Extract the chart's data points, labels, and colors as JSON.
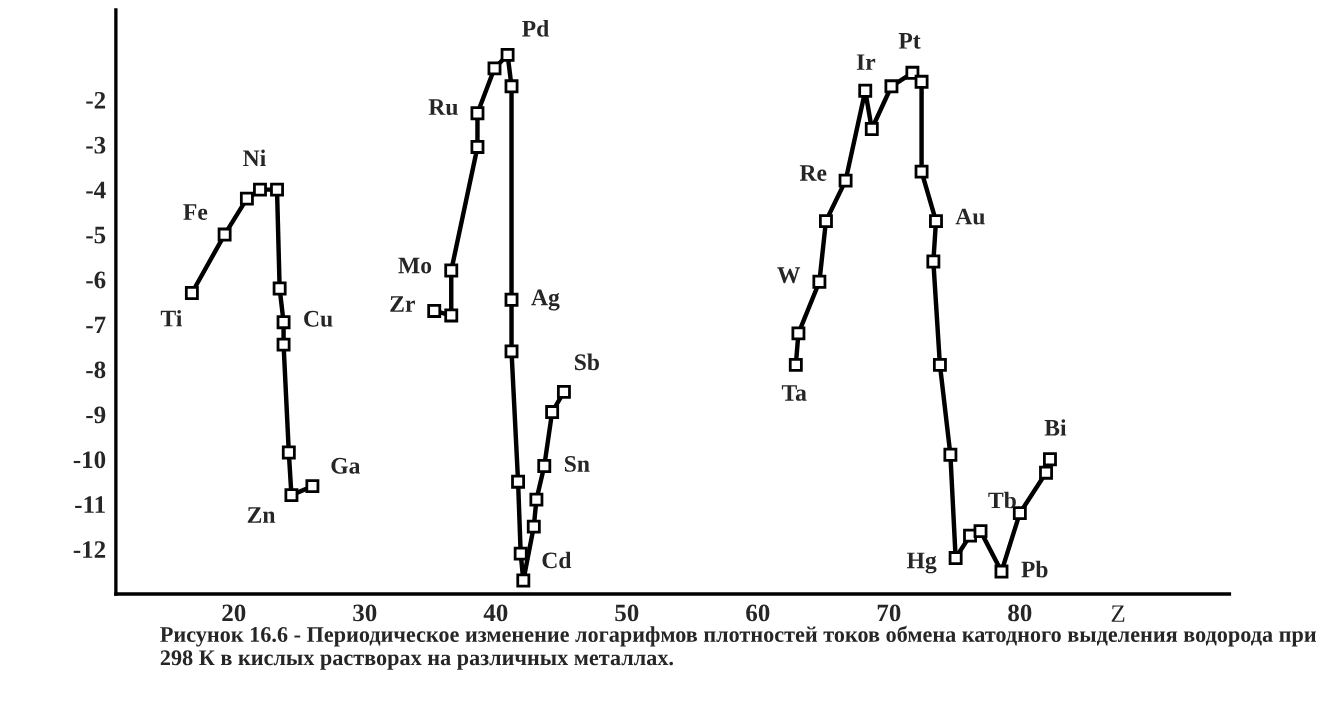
{
  "chart_data": {
    "type": "line",
    "xlabel": "Z",
    "series": [
      {
        "color": "#000000",
        "x": [
          16.8,
          19.3,
          21,
          22,
          23.3,
          23.5,
          23.8,
          23.8,
          24.2,
          24.4,
          26,
          null,
          35.3,
          36.6,
          36.6,
          38.6,
          38.6,
          39.9,
          40.9,
          41.2,
          41.2,
          41.2,
          41.7,
          41.9,
          42.1,
          42.9,
          43.1,
          43.7,
          44.3,
          45.2,
          null,
          62.9,
          63.1,
          64.7,
          65.2,
          66.7,
          68.2,
          68.7,
          70.2,
          71.8,
          72.5,
          72.5,
          73.6,
          73.4,
          73.9,
          74.7,
          75.1,
          76.2,
          77.0,
          78.6,
          80.0,
          82.0,
          82.3
        ],
        "values": [
          -6.3,
          -5.0,
          -4.2,
          -4.0,
          -4.0,
          -6.2,
          -6.95,
          -7.45,
          -9.85,
          -10.8,
          -10.6,
          null,
          -6.7,
          -6.8,
          -5.8,
          -3.05,
          -2.3,
          -1.3,
          -1.0,
          -1.7,
          -6.45,
          -7.6,
          -10.5,
          -12.1,
          -12.7,
          -11.5,
          -10.9,
          -10.15,
          -8.95,
          -8.5,
          null,
          -7.9,
          -7.2,
          -6.05,
          -4.7,
          -3.8,
          -1.8,
          -2.65,
          -1.7,
          -1.4,
          -1.6,
          -3.6,
          -4.7,
          -5.6,
          -7.9,
          -9.9,
          -12.2,
          -11.7,
          -11.6,
          -12.5,
          -11.2,
          -10.3,
          -10.0
        ]
      }
    ],
    "xlim": [
      11,
      96
    ],
    "ylim": [
      -13,
      0
    ],
    "xticks": [
      20,
      30,
      40,
      50,
      60,
      70,
      80
    ],
    "yticks": [
      -2,
      -3,
      -4,
      -5,
      -6,
      -7,
      -8,
      -9,
      -10,
      -11,
      -12
    ],
    "marker": "square",
    "grid": false,
    "legend": false,
    "annotations": [
      {
        "text": "Fe",
        "x": 19.3,
        "y": -5.0
      },
      {
        "text": "Ti",
        "x": 16.8,
        "y": -6.3
      },
      {
        "text": "Ni",
        "x": 22,
        "y": -4.0
      },
      {
        "text": "Cu",
        "x": 23.8,
        "y": -6.95
      },
      {
        "text": "Zn",
        "x": 24.4,
        "y": -10.8
      },
      {
        "text": "Ga",
        "x": 26,
        "y": -10.6
      },
      {
        "text": "Mo",
        "x": 36.6,
        "y": -5.8
      },
      {
        "text": "Zr",
        "x": 35.3,
        "y": -6.7
      },
      {
        "text": "Ru",
        "x": 38.6,
        "y": -2.3
      },
      {
        "text": "Pd",
        "x": 40.9,
        "y": -1.0
      },
      {
        "text": "Ag",
        "x": 41.2,
        "y": -6.45
      },
      {
        "text": "Sb",
        "x": 45.2,
        "y": -8.5
      },
      {
        "text": "Sn",
        "x": 43.7,
        "y": -10.15
      },
      {
        "text": "Cd",
        "x": 42.1,
        "y": -12.7
      },
      {
        "text": "Ir",
        "x": 70.2,
        "y": -1.7
      },
      {
        "text": "Pt",
        "x": 71.8,
        "y": -1.4
      },
      {
        "text": "Re",
        "x": 66.7,
        "y": -3.8
      },
      {
        "text": "Au",
        "x": 73.6,
        "y": -4.7
      },
      {
        "text": "W",
        "x": 64.7,
        "y": -6.05
      },
      {
        "text": "Ta",
        "x": 62.9,
        "y": -7.9
      },
      {
        "text": "Tb",
        "x": 77.0,
        "y": -11.6
      },
      {
        "text": "Hg",
        "x": 75.1,
        "y": -12.2
      },
      {
        "text": "Pb",
        "x": 78.6,
        "y": -12.5
      },
      {
        "text": "Bi",
        "x": 82.3,
        "y": -10.0
      },
      "Рисунок 16.6 - Периодическое изменение логарифмов плотностей токов обмена катодного выделения водорода при 298 К в кислых растворах на различных металлах."
    ]
  }
}
